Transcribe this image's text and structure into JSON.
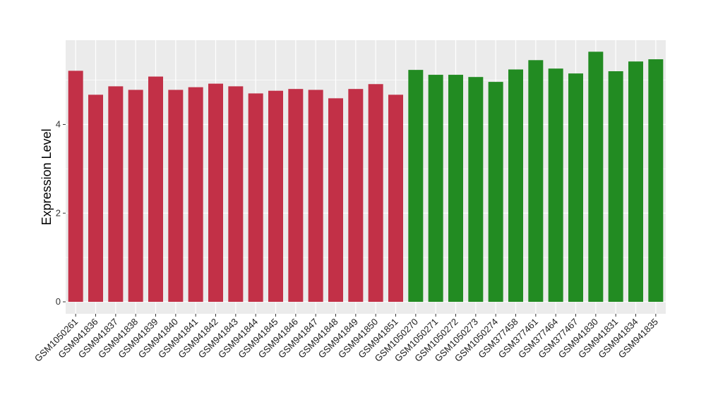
{
  "chart_data": {
    "type": "bar",
    "title": "",
    "xlabel": "",
    "ylabel": "Expression Level",
    "ylim": [
      -0.27,
      5.9
    ],
    "yticks": [
      0,
      2,
      4
    ],
    "grid": true,
    "categories": [
      "GSM1050261",
      "GSM941836",
      "GSM941837",
      "GSM941838",
      "GSM941839",
      "GSM941840",
      "GSM941841",
      "GSM941842",
      "GSM941843",
      "GSM941844",
      "GSM941845",
      "GSM941846",
      "GSM941847",
      "GSM941848",
      "GSM941849",
      "GSM941850",
      "GSM941851",
      "GSM1050270",
      "GSM1050271",
      "GSM1050272",
      "GSM1050273",
      "GSM1050274",
      "GSM377458",
      "GSM377461",
      "GSM377464",
      "GSM377467",
      "GSM941830",
      "GSM941831",
      "GSM941834",
      "GSM941835"
    ],
    "values": [
      5.21,
      4.67,
      4.86,
      4.78,
      5.08,
      4.78,
      4.84,
      4.92,
      4.86,
      4.7,
      4.76,
      4.8,
      4.78,
      4.59,
      4.8,
      4.91,
      4.67,
      5.23,
      5.12,
      5.12,
      5.07,
      4.96,
      5.24,
      5.45,
      5.26,
      5.15,
      5.64,
      5.2,
      5.42,
      5.47
    ],
    "groups": [
      0,
      0,
      0,
      0,
      0,
      0,
      0,
      0,
      0,
      0,
      0,
      0,
      0,
      0,
      0,
      0,
      0,
      1,
      1,
      1,
      1,
      1,
      1,
      1,
      1,
      1,
      1,
      1,
      1,
      1
    ],
    "group_colors": [
      "#C23047",
      "#228B22"
    ]
  }
}
